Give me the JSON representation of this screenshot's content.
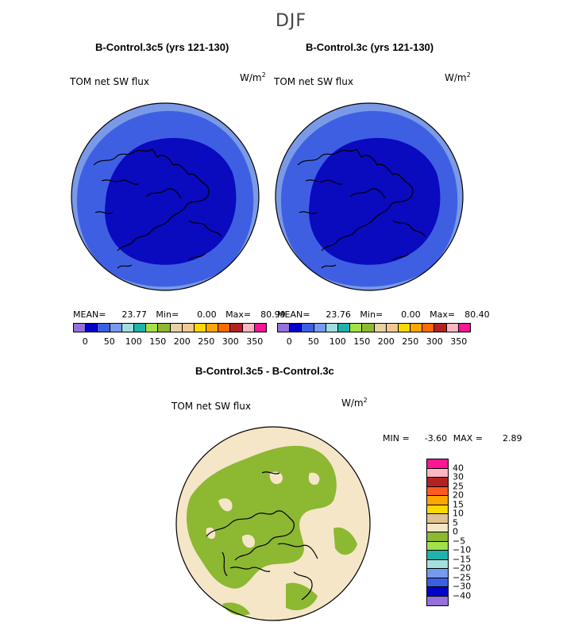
{
  "season": "DJF",
  "diff_title": "B-Control.3c5 - B-Control.3c",
  "diff_var": "TOM net SW flux",
  "units": "W/m",
  "units_exp": "2",
  "diff_stats": {
    "min_label": "MIN =",
    "min": "-3.60",
    "max_label": "MAX =",
    "max": "2.89"
  },
  "colors": {
    "abs_palette": [
      "#9370db",
      "#0000c8",
      "#3a5fe0",
      "#7799ee",
      "#a0dde0",
      "#20b2aa",
      "#a4e04a",
      "#8fb832",
      "#e6d2a0",
      "#f0c890",
      "#ffd700",
      "#ffa500",
      "#ff6a00",
      "#b22222",
      "#ffb6c1",
      "#ff1493"
    ],
    "diff_palette": [
      "#ff1493",
      "#ffb6c1",
      "#b22222",
      "#ff5a1e",
      "#ffa500",
      "#ffd700",
      "#dfc190",
      "#f5e6c8",
      "#8db832",
      "#a4e04a",
      "#20b2aa",
      "#a6e0dc",
      "#7799ee",
      "#3a5fe0",
      "#0000c8",
      "#9370db"
    ],
    "ocean_deep": "#0a0abf",
    "ocean_mid": "#3f5fe3",
    "ocean_edge": "#7a9ae8",
    "diff_land": "#8db832",
    "diff_bg": "#f5e6c8"
  },
  "abs_ticks": [
    "0",
    "50",
    "100",
    "150",
    "200",
    "250",
    "300",
    "350"
  ],
  "diff_ticks": [
    "40",
    "30",
    "25",
    "20",
    "15",
    "10",
    "5",
    "0",
    "−5",
    "−10",
    "−15",
    "−20",
    "−25",
    "−30",
    "−40"
  ],
  "panels": [
    {
      "title": "B-Control.3c5 (yrs 121-130)",
      "var": "TOM net SW flux",
      "mean_label": "MEAN=",
      "mean": "23.77",
      "min_label": "Min=",
      "min": "0.00",
      "max_label": "Max=",
      "max": "80.99"
    },
    {
      "title": "B-Control.3c (yrs 121-130)",
      "var": "TOM net SW flux",
      "mean_label": "MEAN=",
      "mean": "23.76",
      "min_label": "Min=",
      "min": "0.00",
      "max_label": "Max=",
      "max": "80.40"
    }
  ],
  "chart_data": [
    {
      "type": "heatmap",
      "projection": "north-polar-stereographic",
      "title": "B-Control.3c5 (yrs 121-130)",
      "variable": "TOM net SW flux",
      "units": "W/m^2",
      "season": "DJF",
      "stats": {
        "mean": 23.77,
        "min": 0.0,
        "max": 80.99
      },
      "colorbar": {
        "levels": [
          0,
          50,
          100,
          150,
          200,
          250,
          300,
          350
        ],
        "range": [
          0,
          350
        ]
      }
    },
    {
      "type": "heatmap",
      "projection": "north-polar-stereographic",
      "title": "B-Control.3c (yrs 121-130)",
      "variable": "TOM net SW flux",
      "units": "W/m^2",
      "season": "DJF",
      "stats": {
        "mean": 23.76,
        "min": 0.0,
        "max": 80.4
      },
      "colorbar": {
        "levels": [
          0,
          50,
          100,
          150,
          200,
          250,
          300,
          350
        ],
        "range": [
          0,
          350
        ]
      }
    },
    {
      "type": "heatmap",
      "projection": "north-polar-stereographic",
      "title": "B-Control.3c5 - B-Control.3c",
      "variable": "TOM net SW flux",
      "units": "W/m^2",
      "season": "DJF",
      "stats": {
        "min": -3.6,
        "max": 2.89
      },
      "colorbar": {
        "levels": [
          40,
          30,
          25,
          20,
          15,
          10,
          5,
          0,
          -5,
          -10,
          -15,
          -20,
          -25,
          -30,
          -40
        ]
      }
    }
  ]
}
